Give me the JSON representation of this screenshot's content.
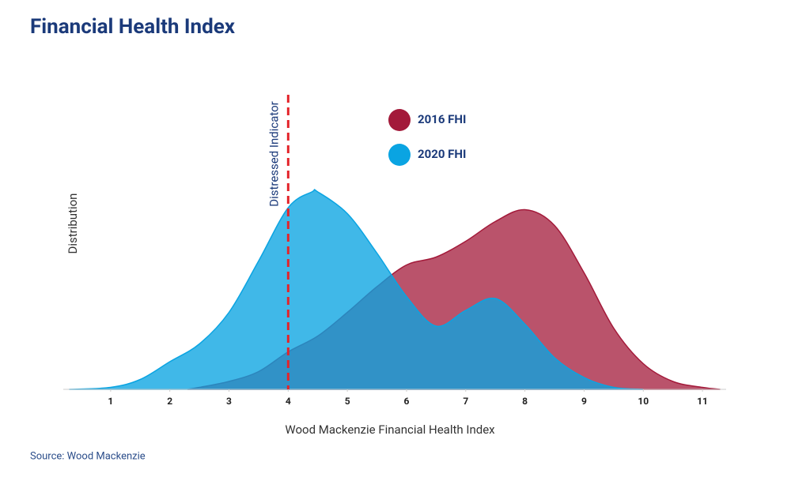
{
  "chart_data": {
    "type": "area",
    "title": "Financial Health Index",
    "x_label": "Wood Mackenzie Financial Health Index",
    "y_label": "Distribution",
    "source": "Source: Wood Mackenzie",
    "xlim": [
      0.2,
      11.4
    ],
    "ylim": [
      0,
      1.2
    ],
    "xticks": [
      1,
      2,
      3,
      4,
      5,
      6,
      7,
      8,
      9,
      10,
      11
    ],
    "threshold": {
      "value": 4,
      "label": "Distressed Indicator",
      "color": "#e3242b"
    },
    "series": [
      {
        "name": "2016 FHI",
        "color": "#a31a3a",
        "x": [
          2.3,
          2.5,
          3,
          3.5,
          4,
          4.5,
          5,
          5.5,
          6,
          6.5,
          7,
          7.5,
          8,
          8.5,
          9,
          9.5,
          10,
          10.5,
          11,
          11.3
        ],
        "values": [
          0,
          0.01,
          0.04,
          0.09,
          0.19,
          0.27,
          0.39,
          0.52,
          0.63,
          0.67,
          0.75,
          0.85,
          0.91,
          0.83,
          0.59,
          0.31,
          0.13,
          0.04,
          0.01,
          0
        ]
      },
      {
        "name": "2020 FHI",
        "color": "#0aa4e2",
        "x": [
          0.3,
          1,
          1.5,
          2,
          2.5,
          3,
          3.5,
          4,
          4.4,
          4.5,
          5,
          5.5,
          6,
          6.5,
          7,
          7.5,
          8,
          8.5,
          9,
          9.5,
          10
        ],
        "values": [
          0,
          0.01,
          0.05,
          0.14,
          0.23,
          0.39,
          0.65,
          0.92,
          1.0,
          1.0,
          0.89,
          0.69,
          0.47,
          0.32,
          0.4,
          0.46,
          0.33,
          0.16,
          0.06,
          0.01,
          0
        ]
      }
    ]
  }
}
